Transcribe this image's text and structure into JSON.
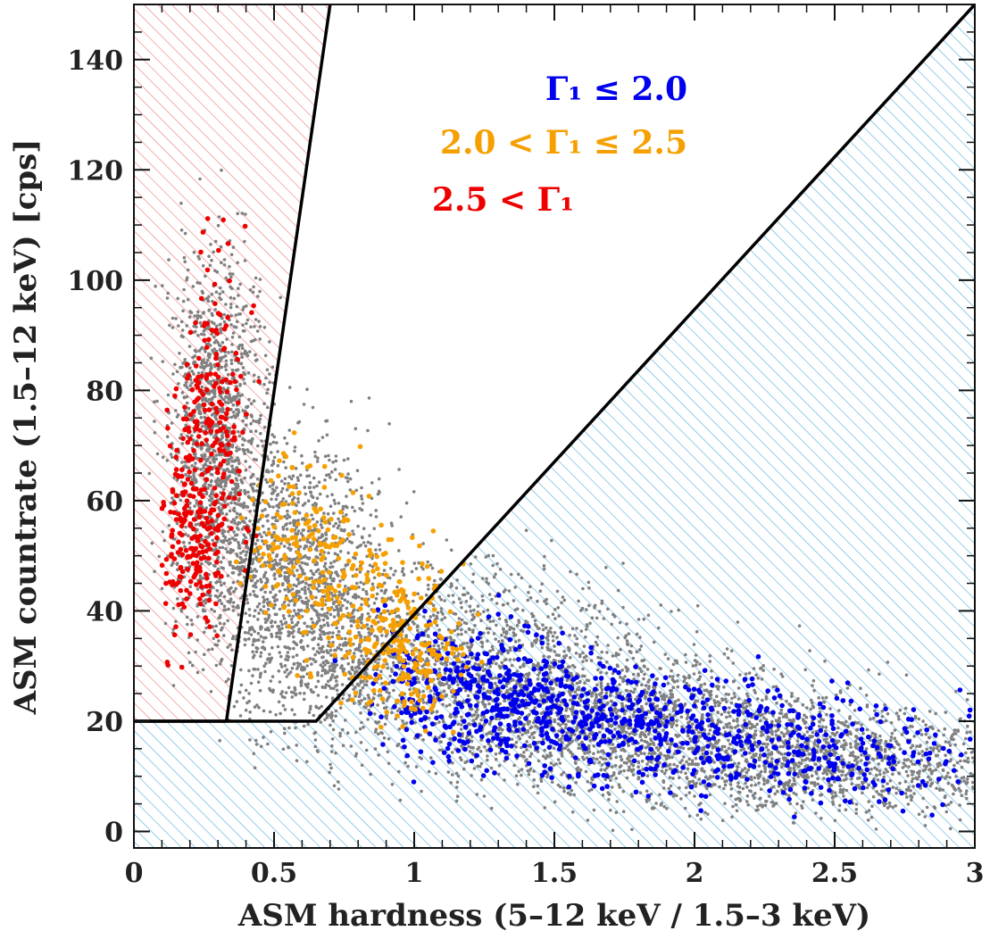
{
  "chart_data": {
    "type": "scatter",
    "xlabel": "ASM hardness (5–12 keV / 1.5–3 keV)",
    "ylabel": "ASM countrate (1.5–12 keV) [cps]",
    "xlim": [
      0,
      3
    ],
    "ylim": [
      -3,
      150
    ],
    "x_ticks": [
      0,
      0.5,
      1,
      1.5,
      2,
      2.5,
      3
    ],
    "x_tick_labels": [
      "0",
      "0.5",
      "1",
      "1.5",
      "2",
      "2.5",
      "3"
    ],
    "y_ticks": [
      0,
      20,
      40,
      60,
      80,
      100,
      120,
      140
    ],
    "y_tick_labels": [
      "0",
      "20",
      "40",
      "60",
      "80",
      "100",
      "120",
      "140"
    ],
    "grid": false,
    "legend_position": "top-right",
    "colors": {
      "gray": "#808080",
      "blue": "#0000ee",
      "orange": "#f5a000",
      "red": "#ee0000",
      "soft_hatch": "#f08080",
      "hard_hatch": "#5ab4dc",
      "boundary": "#000000"
    },
    "boundaries": [
      {
        "name": "soft-state-boundary",
        "points": [
          [
            0,
            20
          ],
          [
            0.33,
            20
          ],
          [
            0.7,
            150
          ]
        ]
      },
      {
        "name": "hard-state-boundary",
        "points": [
          [
            0,
            20
          ],
          [
            0.65,
            20
          ],
          [
            3,
            150
          ]
        ]
      }
    ],
    "series": [
      {
        "name": "all ASM data",
        "color": "#808080",
        "centers": [
          [
            0.3,
            70
          ],
          [
            0.6,
            45
          ],
          [
            1.2,
            30
          ],
          [
            1.8,
            20
          ],
          [
            2.5,
            13
          ]
        ],
        "count": 7000
      },
      {
        "name": "Γ1 ≤ 2.0",
        "legend": "Γ₁ ≤ 2.0",
        "color": "#0000ee",
        "centers": [
          [
            1.2,
            27
          ],
          [
            1.5,
            22
          ],
          [
            1.9,
            19
          ],
          [
            2.4,
            15
          ]
        ],
        "count": 1000
      },
      {
        "name": "2.0 < Γ1 ≤ 2.5",
        "legend": "2.0 < Γ₁ ≤ 2.5",
        "color": "#f5a000",
        "centers": [
          [
            0.6,
            52
          ],
          [
            0.85,
            40
          ],
          [
            1.0,
            32
          ]
        ],
        "count": 450
      },
      {
        "name": "2.5 < Γ1",
        "legend": "2.5 < Γ₁",
        "color": "#ee0000",
        "centers": [
          [
            0.25,
            65
          ],
          [
            0.3,
            80
          ],
          [
            0.2,
            50
          ]
        ],
        "count": 380
      }
    ]
  }
}
